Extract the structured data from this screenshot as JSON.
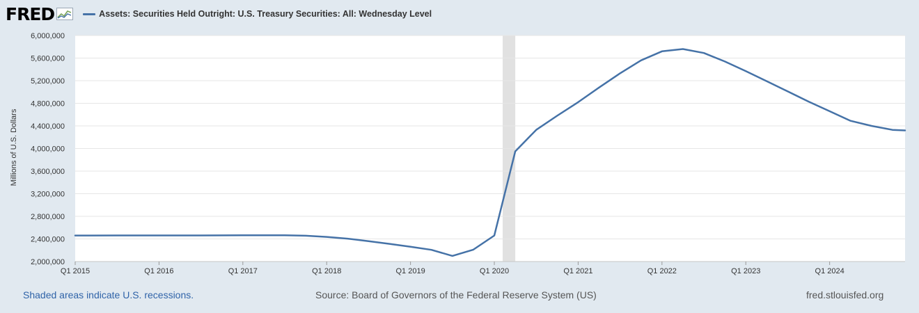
{
  "header": {
    "logo_text": "FRED",
    "logo_icon": "fred-chart-logo-icon"
  },
  "colors": {
    "page_background": "#e1e9f0",
    "series_line": "#4572a7",
    "recession_shading": "#e1e1e1",
    "grid": "#e6e6e6",
    "plot_background": "#ffffff"
  },
  "chart_data": {
    "type": "line",
    "title": "",
    "xlabel": "",
    "ylabel": "Millions of U.S. Dollars",
    "xlim": [
      2015.0,
      2024.9
    ],
    "ylim": [
      2000000,
      6000000
    ],
    "yticks": [
      2000000,
      2400000,
      2800000,
      3200000,
      3600000,
      4000000,
      4400000,
      4800000,
      5200000,
      5600000,
      6000000
    ],
    "ytick_labels": [
      "2,000,000",
      "2,400,000",
      "2,800,000",
      "3,200,000",
      "3,600,000",
      "4,000,000",
      "4,400,000",
      "4,800,000",
      "5,200,000",
      "5,600,000",
      "6,000,000"
    ],
    "xticks": [
      2015,
      2016,
      2017,
      2018,
      2019,
      2020,
      2021,
      2022,
      2023,
      2024
    ],
    "xtick_labels": [
      "Q1 2015",
      "Q1 2016",
      "Q1 2017",
      "Q1 2018",
      "Q1 2019",
      "Q1 2020",
      "Q1 2021",
      "Q1 2022",
      "Q1 2023",
      "Q1 2024"
    ],
    "grid": true,
    "legend_position": "top-left",
    "recessions": [
      [
        2020.1,
        2020.25
      ]
    ],
    "series": [
      {
        "name": "Assets: Securities Held Outright: U.S. Treasury Securities: All: Wednesday Level",
        "x": [
          2015.0,
          2015.5,
          2016.0,
          2016.5,
          2017.0,
          2017.5,
          2017.75,
          2018.0,
          2018.25,
          2018.5,
          2018.75,
          2019.0,
          2019.25,
          2019.5,
          2019.75,
          2020.0,
          2020.25,
          2020.5,
          2020.75,
          2021.0,
          2021.25,
          2021.5,
          2021.75,
          2022.0,
          2022.25,
          2022.5,
          2022.75,
          2023.0,
          2023.25,
          2023.5,
          2023.75,
          2024.0,
          2024.25,
          2024.5,
          2024.75,
          2024.9
        ],
        "y": [
          2460000,
          2461000,
          2461000,
          2461000,
          2465000,
          2465000,
          2456000,
          2436000,
          2405000,
          2360000,
          2312000,
          2262000,
          2207000,
          2100000,
          2210000,
          2460000,
          3950000,
          4330000,
          4580000,
          4820000,
          5080000,
          5330000,
          5560000,
          5720000,
          5760000,
          5690000,
          5540000,
          5370000,
          5190000,
          5010000,
          4830000,
          4660000,
          4490000,
          4400000,
          4330000,
          4320000
        ]
      }
    ]
  },
  "footer": {
    "recession_note": "Shaded areas indicate U.S. recessions.",
    "source": "Source: Board of Governors of the Federal Reserve System (US)",
    "website": "fred.stlouisfed.org"
  }
}
